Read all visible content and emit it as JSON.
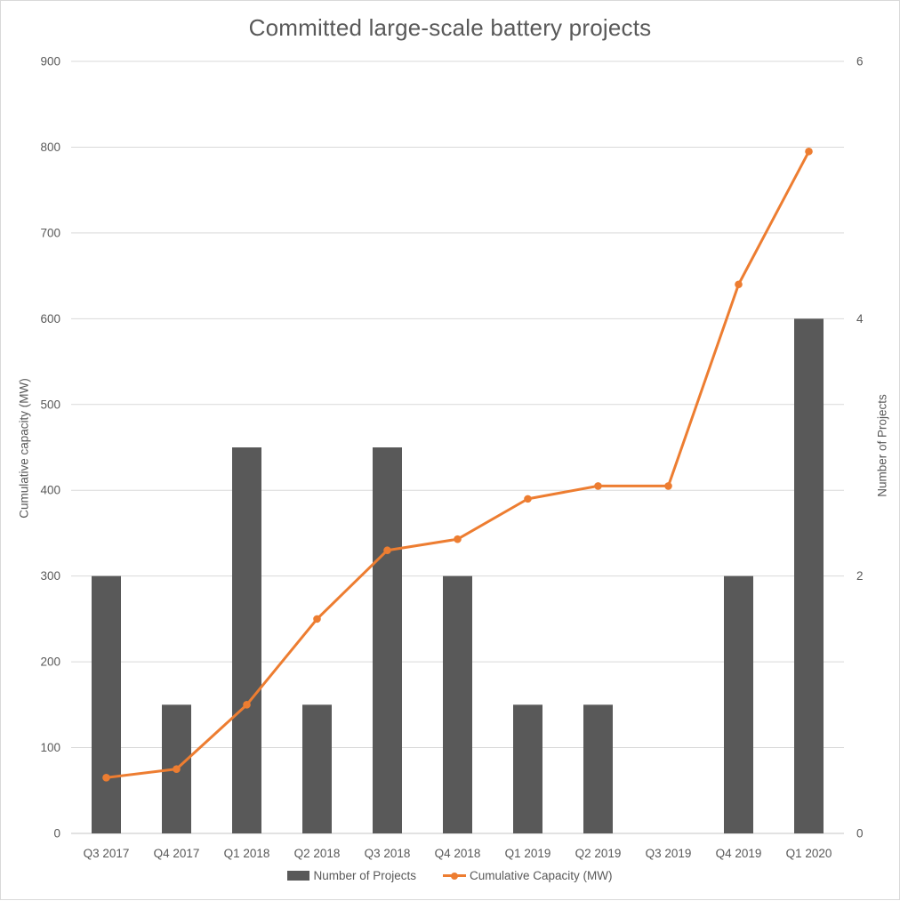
{
  "chart": {
    "title": "Committed large-scale battery projects"
  },
  "chart_data": {
    "type": "combo-bar-line",
    "title": "Committed large-scale battery projects",
    "categories": [
      "Q3 2017",
      "Q4 2017",
      "Q1 2018",
      "Q2 2018",
      "Q3 2018",
      "Q4 2018",
      "Q1 2019",
      "Q2 2019",
      "Q3 2019",
      "Q4 2019",
      "Q1 2020"
    ],
    "series": [
      {
        "name": "Number of Projects",
        "type": "bar",
        "axis": "right",
        "color": "#595959",
        "values": [
          2,
          1,
          3,
          1,
          3,
          2,
          1,
          1,
          0,
          2,
          4
        ]
      },
      {
        "name": "Cumulative Capacity (MW)",
        "type": "line",
        "axis": "left",
        "color": "#ED7D31",
        "values": [
          65,
          75,
          150,
          250,
          330,
          343,
          390,
          405,
          405,
          640,
          795
        ]
      }
    ],
    "left_axis": {
      "label": "Cumulative capacity (MW)",
      "min": 0,
      "max": 900,
      "tick_step": 100,
      "ticks": [
        0,
        100,
        200,
        300,
        400,
        500,
        600,
        700,
        800,
        900
      ]
    },
    "right_axis": {
      "label": "Number of Projects",
      "min": 0,
      "max": 6,
      "ticks": [
        0,
        2,
        4,
        6
      ]
    },
    "legend": {
      "position": "bottom",
      "entries": [
        "Number of Projects",
        "Cumulative Capacity (MW)"
      ]
    },
    "grid": "horizontal",
    "colors": {
      "grid": "#D9D9D9",
      "axis_line": "#C6C6C6",
      "text": "#595959",
      "title": "#595959",
      "background": "#FFFFFF"
    }
  }
}
